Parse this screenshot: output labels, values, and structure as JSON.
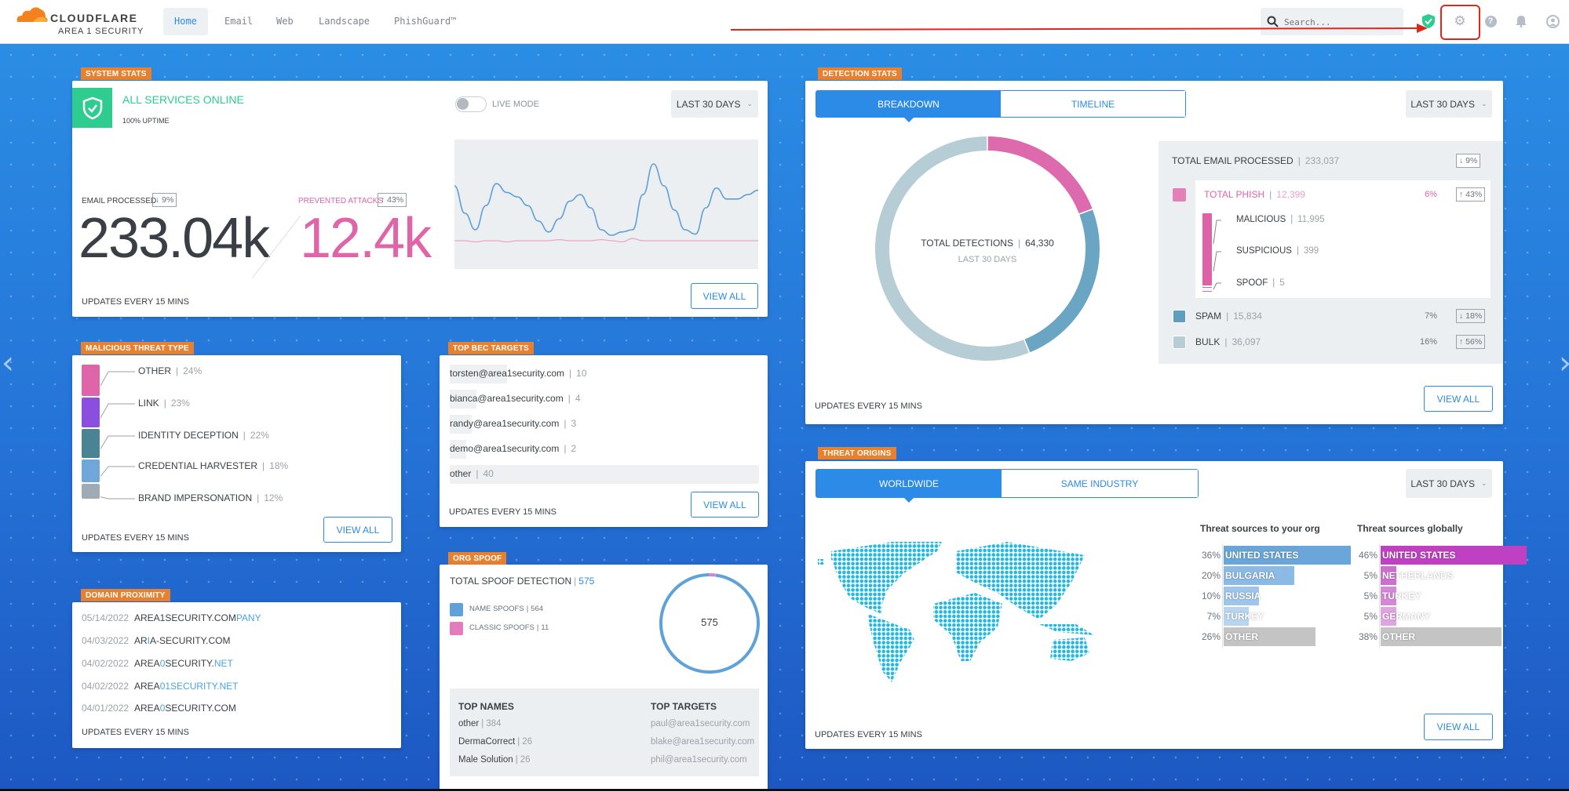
{
  "header": {
    "brand": "CLOUDFLARE",
    "sub_brand": "AREA 1 SECURITY",
    "nav": [
      "Home",
      "Email",
      "Web",
      "Landscape",
      "PhishGuard™"
    ],
    "active_nav": "Home",
    "search_placeholder": "Search...",
    "icons": [
      "shield-check-icon",
      "gear-icon",
      "help-icon",
      "bell-icon",
      "user-icon"
    ],
    "highlighted_icon": "gear-icon"
  },
  "colors": {
    "accent": "#2c8be6",
    "tag": "#e8812f",
    "phish": "#e064a8",
    "online": "#2ecc8f",
    "spam": "#6aa5c4",
    "bulk": "#b7cdd6"
  },
  "system_stats": {
    "tag": "SYSTEM STATS",
    "status": "ALL SERVICES ONLINE",
    "uptime": "100% UPTIME",
    "live_mode_label": "LIVE MODE",
    "live_mode_on": false,
    "range": "LAST 30 DAYS",
    "email_label": "EMAIL PROCESSED",
    "email_change": "↓ 9%",
    "email_value": "233.04k",
    "attacks_label": "PREVENTED ATTACKS",
    "attacks_change": "↑ 43%",
    "attacks_value": "12.4k",
    "updates": "UPDATES EVERY 15 MINS",
    "view_all": "VIEW ALL",
    "trend_email": [
      70,
      45,
      30,
      52,
      72,
      64,
      60,
      52,
      38,
      28,
      40,
      56,
      62,
      50,
      30,
      25,
      28,
      30,
      62,
      90,
      70,
      48,
      30,
      26,
      50,
      68,
      58,
      58,
      62,
      66
    ],
    "trend_attacks": [
      20,
      20,
      19,
      20,
      20,
      19,
      20,
      20,
      20,
      20,
      21,
      20,
      20,
      20,
      21,
      20,
      19,
      22,
      20,
      20,
      20,
      20,
      20,
      20,
      20,
      20,
      20,
      20,
      20,
      20
    ]
  },
  "malicious": {
    "tag": "MALICIOUS THREAT TYPE",
    "items": [
      {
        "label": "OTHER",
        "pct": "24%",
        "value": 24,
        "color": "#e064a8"
      },
      {
        "label": "LINK",
        "pct": "23%",
        "value": 23,
        "color": "#8b4fe0"
      },
      {
        "label": "IDENTITY DECEPTION",
        "pct": "22%",
        "value": 22,
        "color": "#4a8393"
      },
      {
        "label": "CREDENTIAL HARVESTER",
        "pct": "18%",
        "value": 18,
        "color": "#70a6d8"
      },
      {
        "label": "BRAND IMPERSONATION",
        "pct": "12%",
        "value": 12,
        "color": "#9eaab6"
      }
    ],
    "updates": "UPDATES EVERY 15 MINS",
    "view_all": "VIEW ALL"
  },
  "domain_proximity": {
    "tag": "DOMAIN PROXIMITY",
    "items": [
      {
        "date": "05/14/2022",
        "a": "AREA1SECURITY.COM",
        "b": "PANY",
        "c": ""
      },
      {
        "date": "04/03/2022",
        "a": "AR",
        "b": "I",
        "c": "A-SECURITY.COM"
      },
      {
        "date": "04/02/2022",
        "a": "AREA",
        "b": "0",
        "c": "SECURITY.",
        "d": "NET"
      },
      {
        "date": "04/02/2022",
        "a": "AREA",
        "b": "01SECURITY.NET",
        "c": ""
      },
      {
        "date": "04/01/2022",
        "a": "AREA",
        "b": "0",
        "c": "SECURITY.COM"
      }
    ],
    "updates": "UPDATES EVERY 15 MINS"
  },
  "bec": {
    "tag": "TOP BEC TARGETS",
    "items": [
      {
        "email": "torsten@area1security.com",
        "count": "10",
        "value": 10
      },
      {
        "email": "bianca@area1security.com",
        "count": "4",
        "value": 4
      },
      {
        "email": "randy@area1security.com",
        "count": "3",
        "value": 3
      },
      {
        "email": "demo@area1security.com",
        "count": "2",
        "value": 2
      },
      {
        "email": "other",
        "count": "40",
        "value": 40
      }
    ],
    "updates": "UPDATES EVERY 15 MINS",
    "view_all": "VIEW ALL"
  },
  "org_spoof": {
    "tag": "ORG SPOOF",
    "total_label": "TOTAL SPOOF DETECTION",
    "total": "575",
    "legend": [
      {
        "label": "NAME SPOOFS",
        "count": "564",
        "value": 564,
        "color": "#5ea2d9"
      },
      {
        "label": "CLASSIC SPOOFS",
        "count": "11",
        "value": 11,
        "color": "#e47bbd"
      }
    ],
    "top_names_title": "TOP NAMES",
    "top_names": [
      {
        "name": "other",
        "count": "384"
      },
      {
        "name": "DermaCorrect",
        "count": "26"
      },
      {
        "name": "Male Solution",
        "count": "26"
      }
    ],
    "top_targets_title": "TOP TARGETS",
    "top_targets": [
      "paul@area1security.com",
      "blake@area1security.com",
      "phil@area1security.com"
    ]
  },
  "detection": {
    "tag": "DETECTION STATS",
    "tabs": [
      "BREAKDOWN",
      "TIMELINE"
    ],
    "active_tab": "BREAKDOWN",
    "range": "LAST 30 DAYS",
    "center_label": "TOTAL DETECTIONS",
    "center_value": "64,330",
    "center_sub": "LAST 30 DAYS",
    "total_label": "TOTAL EMAIL PROCESSED",
    "total_value": "233,037",
    "total_change": "↓ 9%",
    "phish": {
      "label": "TOTAL PHISH",
      "count": "12,399",
      "value": 12399,
      "pct": "6%",
      "change": "↑ 43%",
      "sub": [
        {
          "label": "MALICIOUS",
          "count": "11,995"
        },
        {
          "label": "SUSPICIOUS",
          "count": "399"
        },
        {
          "label": "SPOOF",
          "count": "5"
        }
      ]
    },
    "spam": {
      "label": "SPAM",
      "count": "15,834",
      "value": 15834,
      "pct": "7%",
      "change": "↓ 18%"
    },
    "bulk": {
      "label": "BULK",
      "count": "36,097",
      "value": 36097,
      "pct": "16%",
      "change": "↑ 56%"
    },
    "updates": "UPDATES EVERY 15 MINS",
    "view_all": "VIEW ALL"
  },
  "threat_origins": {
    "tag": "THREAT ORIGINS",
    "tabs": [
      "WORLDWIDE",
      "SAME INDUSTRY"
    ],
    "active_tab": "WORLDWIDE",
    "range": "LAST 30 DAYS",
    "org_title": "Threat sources to your org",
    "global_title": "Threat sources globally",
    "org": [
      {
        "pct": "36%",
        "value": 36,
        "country": "UNITED STATES",
        "color": "#6aa6da"
      },
      {
        "pct": "20%",
        "value": 20,
        "country": "BULGARIA",
        "color": "#8bbae4"
      },
      {
        "pct": "10%",
        "value": 10,
        "country": "RUSSIA",
        "color": "#9fc6ea"
      },
      {
        "pct": "7%",
        "value": 7,
        "country": "TURKEY",
        "color": "#b8d5f0"
      },
      {
        "pct": "26%",
        "value": 26,
        "country": "OTHER",
        "color": "#c4c4c4"
      }
    ],
    "global": [
      {
        "pct": "46%",
        "value": 46,
        "country": "UNITED STATES",
        "color": "#c040c4"
      },
      {
        "pct": "5%",
        "value": 5,
        "country": "NETHERLANDS",
        "color": "#cc70d0"
      },
      {
        "pct": "5%",
        "value": 5,
        "country": "TURKEY",
        "color": "#d488d6"
      },
      {
        "pct": "5%",
        "value": 5,
        "country": "GERMANY",
        "color": "#dfa5e0"
      },
      {
        "pct": "38%",
        "value": 38,
        "country": "OTHER",
        "color": "#c4c4c4"
      }
    ],
    "updates": "UPDATES EVERY 15 MINS",
    "view_all": "VIEW ALL"
  }
}
